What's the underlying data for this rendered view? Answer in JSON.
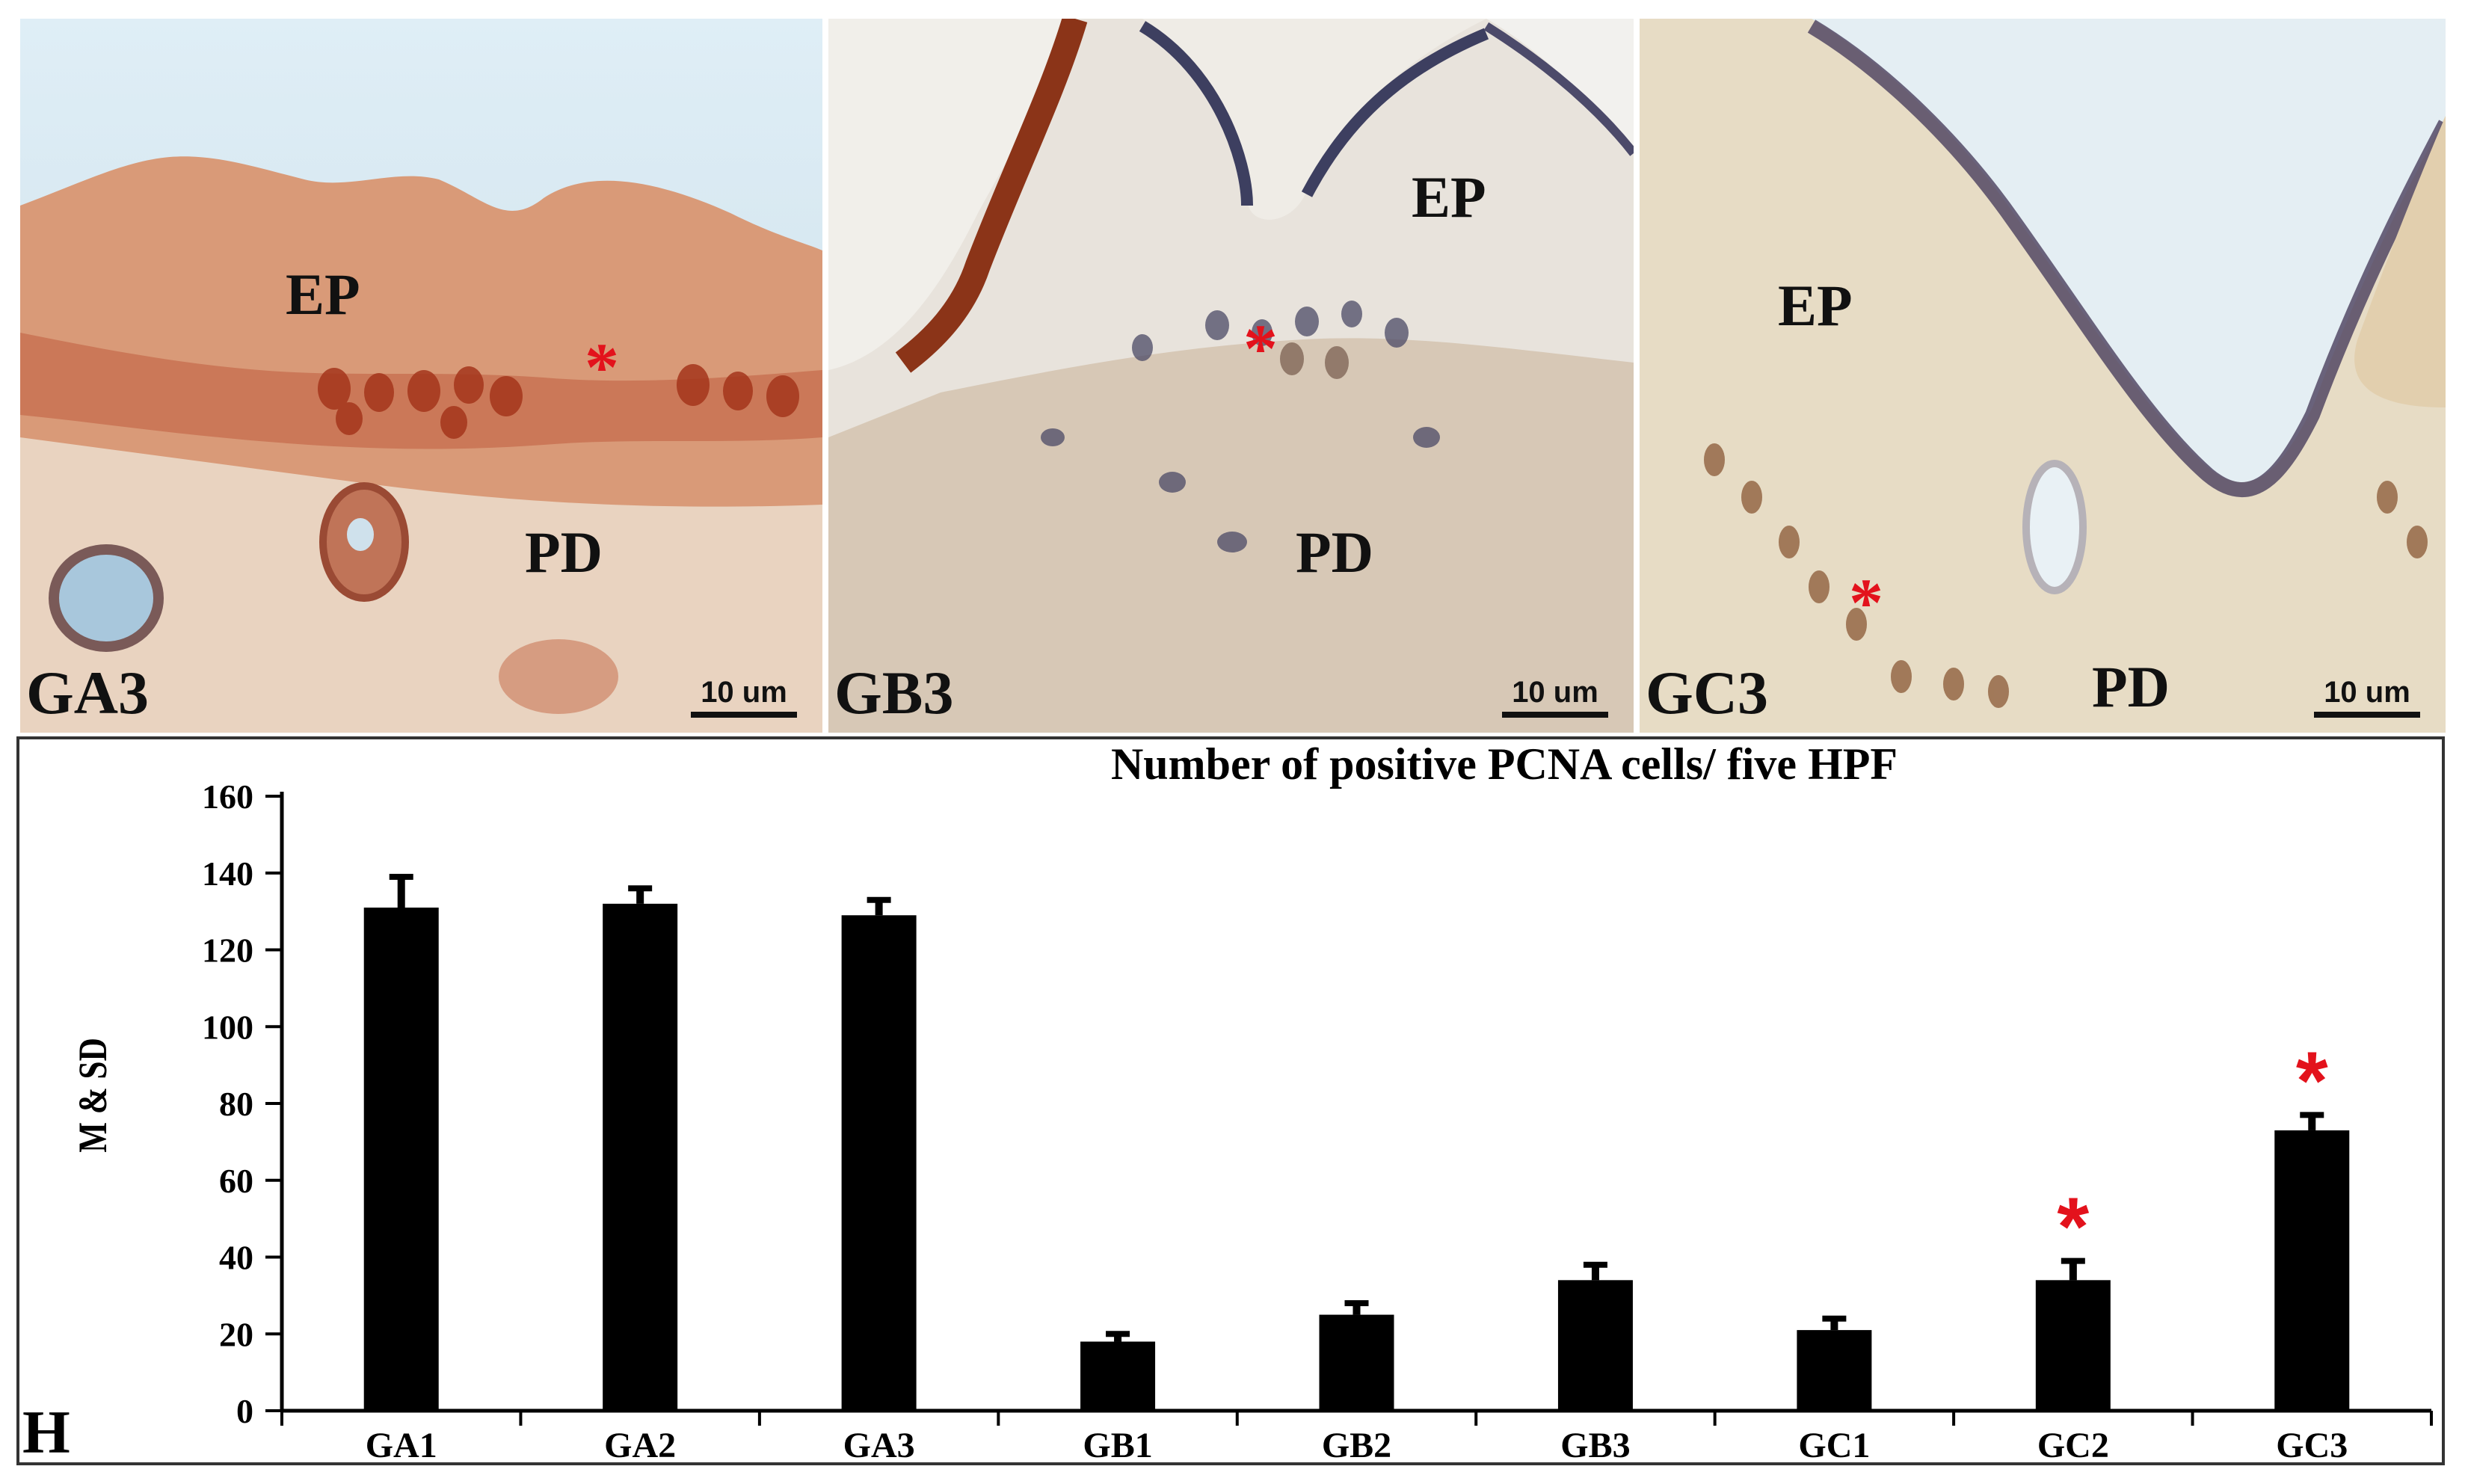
{
  "panels": [
    {
      "id": "GA3",
      "label": "GA3",
      "ep": "EP",
      "pd": "PD",
      "scale": "10 um"
    },
    {
      "id": "GB3",
      "label": "GB3",
      "ep": "EP",
      "pd": "PD",
      "scale": "10 um"
    },
    {
      "id": "GC3",
      "label": "GC3",
      "ep": "EP",
      "pd": "PD",
      "scale": "10 um"
    }
  ],
  "panel_star": "*",
  "chart_label": "H",
  "chart_data": {
    "type": "bar",
    "title": "Number of positive PCNA cells/ five HPF",
    "xlabel": "",
    "ylabel": "M & SD",
    "categories": [
      "GA1",
      "GA2",
      "GA3",
      "GB1",
      "GB2",
      "GB3",
      "GC1",
      "GC2",
      "GC3"
    ],
    "values": [
      131,
      132,
      129,
      18,
      25,
      34,
      21,
      34,
      73
    ],
    "errors": [
      8,
      4,
      4,
      2,
      3,
      4,
      3,
      5,
      4
    ],
    "significant": [
      false,
      false,
      false,
      false,
      false,
      false,
      false,
      true,
      true
    ],
    "significance_marker": "*",
    "ylim": [
      0,
      160
    ],
    "yticks": [
      0,
      20,
      40,
      60,
      80,
      100,
      120,
      140,
      160
    ],
    "bar_color": "#000000",
    "marker_color": "#e3121c",
    "grid": false,
    "legend": "none"
  }
}
